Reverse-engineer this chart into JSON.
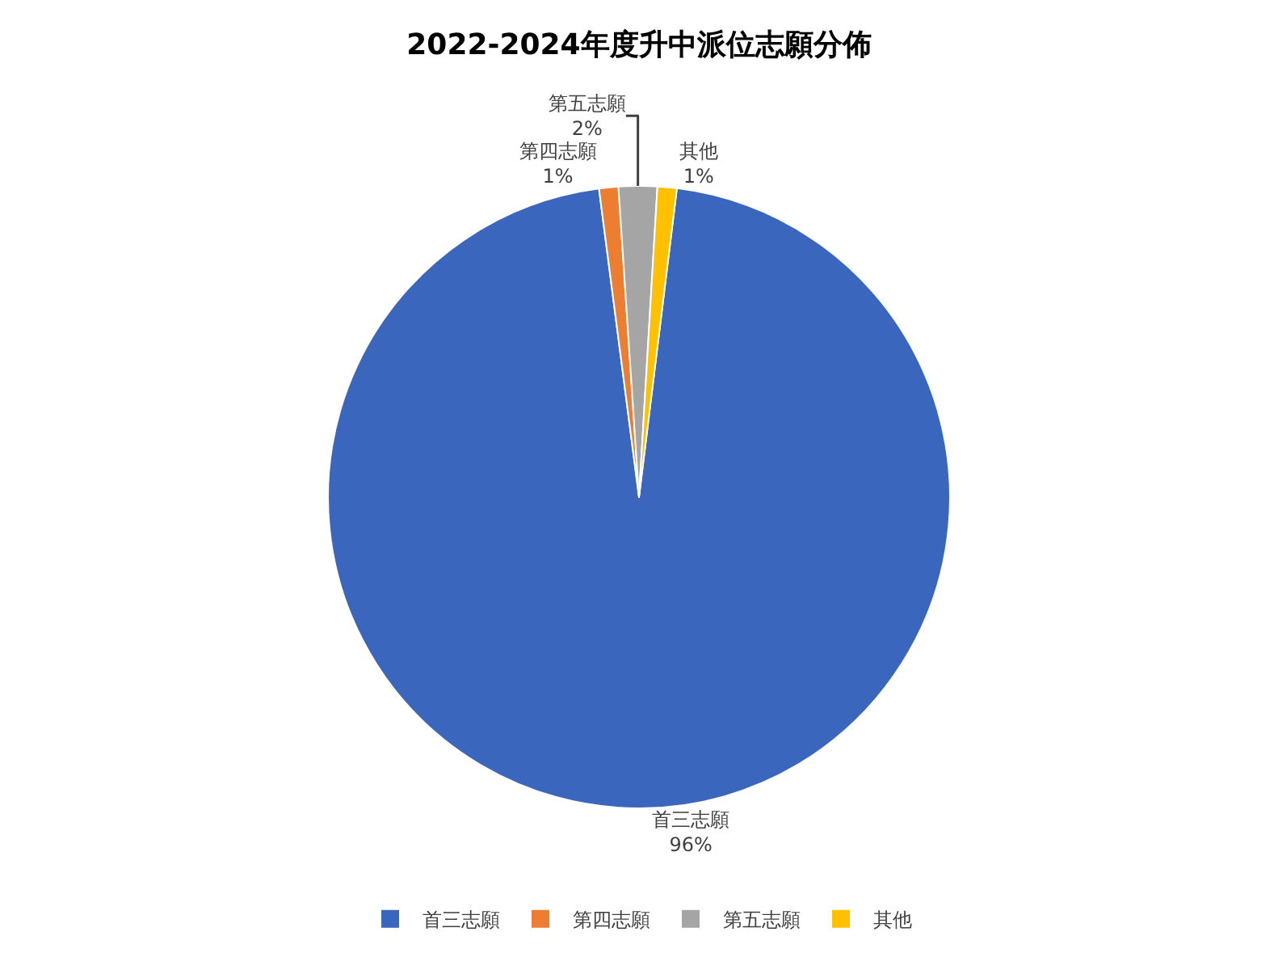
{
  "chart_data": {
    "type": "pie",
    "title": "2022-2024年度升中派位志願分佈",
    "categories": [
      "首三志願",
      "第四志願",
      "第五志願",
      "其他"
    ],
    "values": [
      96,
      1,
      2,
      1
    ],
    "value_labels": [
      "96%",
      "1%",
      "2%",
      "1%"
    ],
    "colors": [
      "#3a66be",
      "#ed7d31",
      "#a5a5a5",
      "#ffc000"
    ],
    "legend": "bottom"
  }
}
